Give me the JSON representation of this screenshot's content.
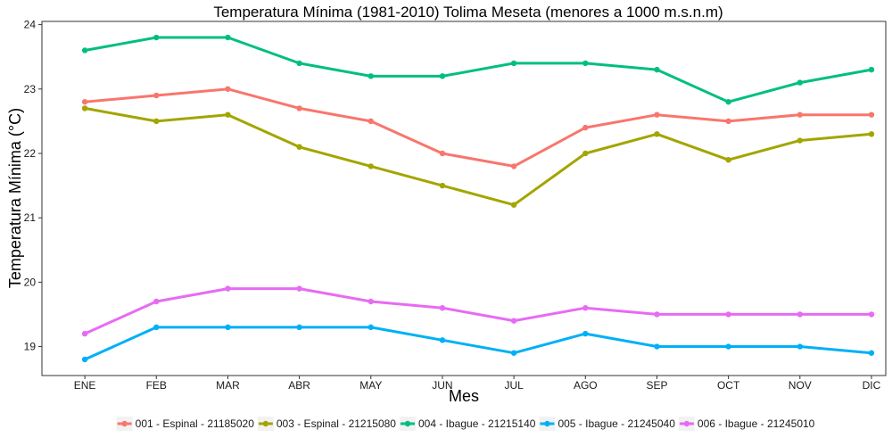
{
  "chart_data": {
    "type": "line",
    "title": "Temperatura Mínima (1981-2010) Tolima Meseta (menores a 1000 m.s.n.m)",
    "xlabel": "Mes",
    "ylabel": "Temperatura Mínima (°C)",
    "categories": [
      "ENE",
      "FEB",
      "MAR",
      "ABR",
      "MAY",
      "JUN",
      "JUL",
      "AGO",
      "SEP",
      "OCT",
      "NOV",
      "DIC"
    ],
    "ylim": [
      18.55,
      24.05
    ],
    "yticks": [
      19,
      20,
      21,
      22,
      23,
      24
    ],
    "grid": false,
    "legend_position": "bottom",
    "series": [
      {
        "name": "001 - Espinal - 21185020",
        "color": "#F8766D",
        "values": [
          22.8,
          22.9,
          23.0,
          22.7,
          22.5,
          22.0,
          21.8,
          22.4,
          22.6,
          22.5,
          22.6,
          22.6
        ]
      },
      {
        "name": "003 - Espinal - 21215080",
        "color": "#A3A500",
        "values": [
          22.7,
          22.5,
          22.6,
          22.1,
          21.8,
          21.5,
          21.2,
          22.0,
          22.3,
          21.9,
          22.2,
          22.3
        ]
      },
      {
        "name": "004 - Ibague - 21215140",
        "color": "#00BF7D",
        "values": [
          23.6,
          23.8,
          23.8,
          23.4,
          23.2,
          23.2,
          23.4,
          23.4,
          23.3,
          22.8,
          23.1,
          23.3
        ]
      },
      {
        "name": "005 - Ibague - 21245040",
        "color": "#00B0F6",
        "values": [
          18.8,
          19.3,
          19.3,
          19.3,
          19.3,
          19.1,
          18.9,
          19.2,
          19.0,
          19.0,
          19.0,
          18.9
        ]
      },
      {
        "name": "006 - Ibague - 21245010",
        "color": "#E76BF3",
        "values": [
          19.2,
          19.7,
          19.9,
          19.9,
          19.7,
          19.6,
          19.4,
          19.6,
          19.5,
          19.5,
          19.5,
          19.5
        ]
      }
    ]
  }
}
